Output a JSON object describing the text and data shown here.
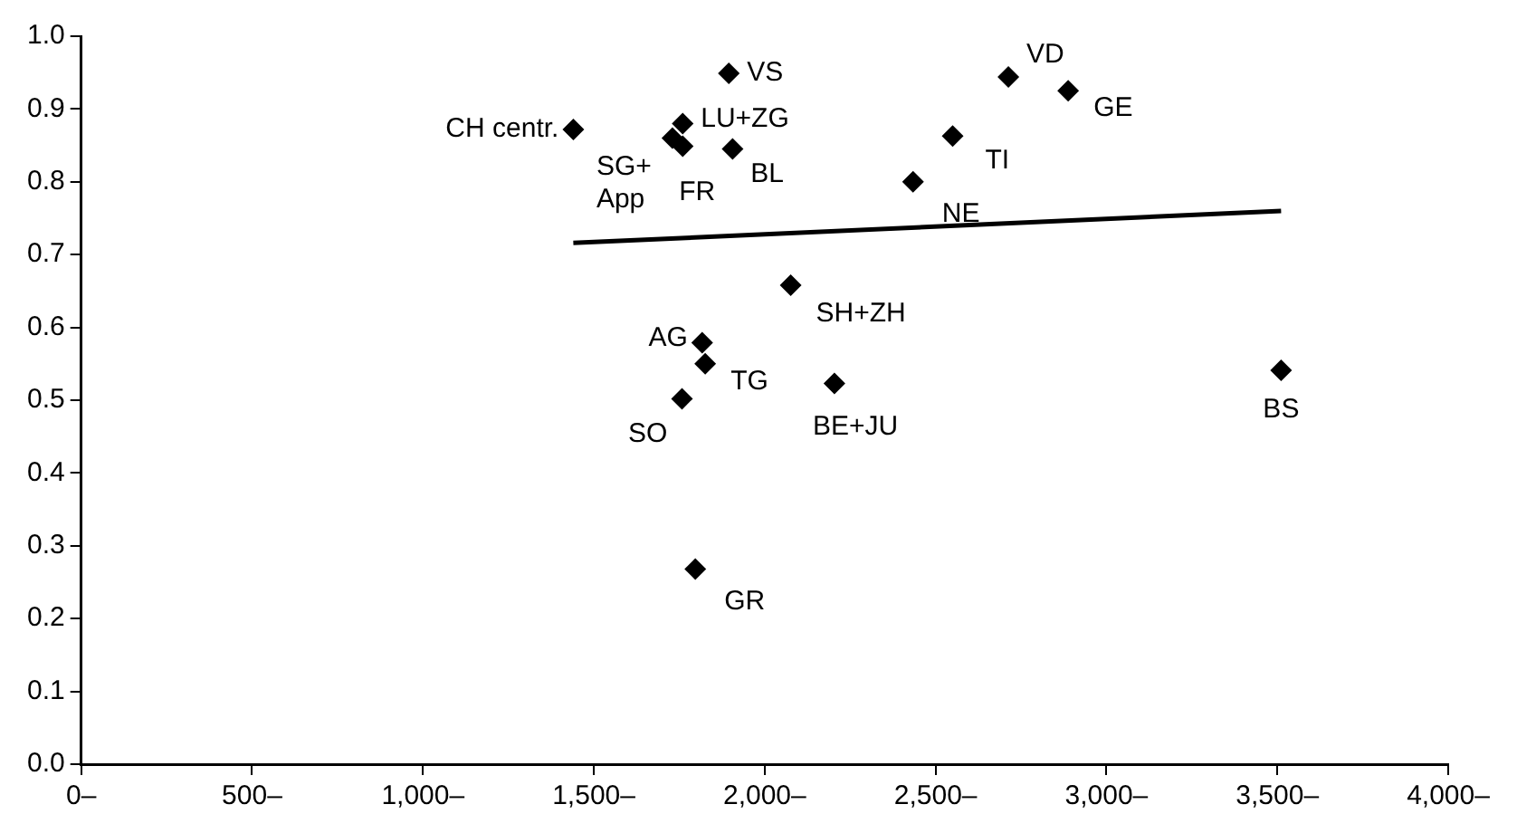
{
  "chart_data": {
    "type": "scatter",
    "marker": "diamond",
    "grid": false,
    "legend": false,
    "xlim": [
      0,
      4000
    ],
    "xticks": [
      {
        "value": 0,
        "label": "0–"
      },
      {
        "value": 500,
        "label": "500–"
      },
      {
        "value": 1000,
        "label": "1,000–"
      },
      {
        "value": 1500,
        "label": "1,500–"
      },
      {
        "value": 2000,
        "label": "2,000–"
      },
      {
        "value": 2500,
        "label": "2,500–"
      },
      {
        "value": 3000,
        "label": "3,000–"
      },
      {
        "value": 3500,
        "label": "3,500–"
      },
      {
        "value": 4000,
        "label": "4,000–"
      }
    ],
    "ylim": [
      0,
      1
    ],
    "yticks": [
      {
        "value": 0,
        "label": "0.0"
      },
      0.1,
      0.2,
      0.3,
      0.4,
      0.5,
      0.6,
      0.7,
      0.8,
      0.9,
      {
        "value": 1,
        "label": "1.0"
      }
    ],
    "series": [
      {
        "type": "scatter",
        "color": "#000000",
        "x": [
          1440,
          1895,
          1760,
          1730,
          1760,
          1906,
          2713,
          2888,
          2550,
          2434,
          2076,
          1817,
          1826,
          1758,
          2204,
          1797,
          3511
        ],
        "values": [
          0.872,
          0.949,
          0.88,
          0.86,
          0.849,
          0.845,
          0.944,
          0.925,
          0.863,
          0.8,
          0.658,
          0.579,
          0.55,
          0.502,
          0.523,
          0.268,
          0.541
        ]
      },
      {
        "type": "line",
        "color": "#000000",
        "marker": "none",
        "x": [
          1440,
          3511
        ],
        "values": [
          0.716,
          0.76
        ]
      }
    ],
    "annotations": [
      {
        "text": "CH centr.",
        "x": 1440,
        "y": 0.872
      },
      {
        "text": "VS",
        "x": 1895,
        "y": 0.949
      },
      {
        "text": "LU+ZG",
        "x": 1760,
        "y": 0.88
      },
      {
        "text": "SG+ App",
        "x": 1730,
        "y": 0.86
      },
      {
        "text": "FR",
        "x": 1760,
        "y": 0.849
      },
      {
        "text": "BL",
        "x": 1906,
        "y": 0.845
      },
      {
        "text": "VD",
        "x": 2713,
        "y": 0.944
      },
      {
        "text": "GE",
        "x": 2888,
        "y": 0.925
      },
      {
        "text": "TI",
        "x": 2550,
        "y": 0.863
      },
      {
        "text": "NE",
        "x": 2434,
        "y": 0.8
      },
      {
        "text": "SH+ZH",
        "x": 2076,
        "y": 0.658
      },
      {
        "text": "AG",
        "x": 1817,
        "y": 0.579
      },
      {
        "text": "TG",
        "x": 1826,
        "y": 0.55
      },
      {
        "text": "SO",
        "x": 1758,
        "y": 0.502
      },
      {
        "text": "BE+JU",
        "x": 2204,
        "y": 0.523
      },
      {
        "text": "GR",
        "x": 1797,
        "y": 0.268
      },
      {
        "text": "BS",
        "x": 3511,
        "y": 0.541
      }
    ]
  }
}
